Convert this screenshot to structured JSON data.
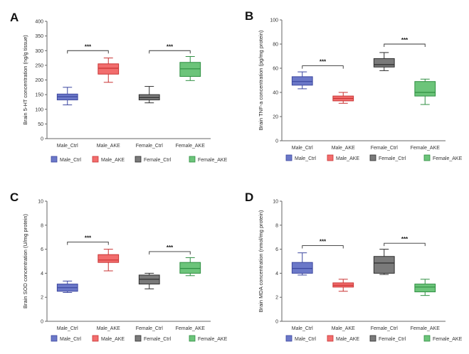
{
  "colors": {
    "blue": {
      "fill": "#6b78c8",
      "stroke": "#3c47a0"
    },
    "red": {
      "fill": "#f26d6d",
      "stroke": "#c93333"
    },
    "gray": {
      "fill": "#7a7a7a",
      "stroke": "#2e2e2e"
    },
    "green": {
      "fill": "#6cc47a",
      "stroke": "#2f8f42"
    }
  },
  "legend": [
    "Male_Ctrl",
    "Male_AKE",
    "Female_Ctrl",
    "Female_AKE"
  ],
  "chart_data": [
    {
      "type": "box",
      "panel": "A",
      "ylabel": "Brain 5-HT concentration (ng/g tissue)",
      "ylim": [
        0,
        400
      ],
      "yticks": [
        0,
        50,
        100,
        150,
        200,
        250,
        300,
        350,
        400
      ],
      "categories": [
        "Male_Ctrl",
        "Male_AKE",
        "Female_Ctrl",
        "Female_AKE"
      ],
      "boxes": [
        {
          "min": 115,
          "q1": 132,
          "median": 143,
          "q3": 152,
          "max": 175,
          "color": "blue"
        },
        {
          "min": 192,
          "q1": 220,
          "median": 240,
          "q3": 255,
          "max": 275,
          "color": "red"
        },
        {
          "min": 122,
          "q1": 132,
          "median": 140,
          "q3": 150,
          "max": 178,
          "color": "gray"
        },
        {
          "min": 198,
          "q1": 212,
          "median": 238,
          "q3": 260,
          "max": 280,
          "color": "green"
        }
      ],
      "significance": [
        {
          "from": 0,
          "to": 1,
          "y": 300,
          "label": "***"
        },
        {
          "from": 2,
          "to": 3,
          "y": 300,
          "label": "***"
        }
      ]
    },
    {
      "type": "box",
      "panel": "B",
      "ylabel": "Brain TNF-a concentration (pg/mg protein)",
      "ylim": [
        0,
        100
      ],
      "yticks": [
        0,
        20,
        40,
        60,
        80,
        100
      ],
      "categories": [
        "Male_Ctrl",
        "Male_AKE",
        "Female_Ctrl",
        "Female_AKE"
      ],
      "boxes": [
        {
          "min": 43,
          "q1": 46,
          "median": 49,
          "q3": 53,
          "max": 57,
          "color": "blue"
        },
        {
          "min": 31,
          "q1": 33,
          "median": 35,
          "q3": 37,
          "max": 40,
          "color": "red"
        },
        {
          "min": 58,
          "q1": 61,
          "median": 63,
          "q3": 68,
          "max": 73,
          "color": "gray"
        },
        {
          "min": 30,
          "q1": 37,
          "median": 40,
          "q3": 49,
          "max": 51,
          "color": "green"
        }
      ],
      "significance": [
        {
          "from": 0,
          "to": 1,
          "y": 62,
          "label": "***"
        },
        {
          "from": 2,
          "to": 3,
          "y": 80,
          "label": "***"
        }
      ]
    },
    {
      "type": "box",
      "panel": "C",
      "ylabel": "Brain SOD concentration (U/mg protein)",
      "ylim": [
        0,
        10
      ],
      "yticks": [
        0,
        2,
        4,
        6,
        8,
        10
      ],
      "categories": [
        "Male_Ctrl",
        "Male_AKE",
        "Female_Ctrl",
        "Female_AKE"
      ],
      "boxes": [
        {
          "min": 2.4,
          "q1": 2.5,
          "median": 2.8,
          "q3": 3.1,
          "max": 3.35,
          "color": "blue"
        },
        {
          "min": 4.2,
          "q1": 4.9,
          "median": 5.1,
          "q3": 5.55,
          "max": 6.0,
          "color": "red"
        },
        {
          "min": 2.7,
          "q1": 3.1,
          "median": 3.5,
          "q3": 3.85,
          "max": 4.0,
          "color": "gray"
        },
        {
          "min": 3.8,
          "q1": 4.0,
          "median": 4.4,
          "q3": 4.9,
          "max": 5.3,
          "color": "green"
        }
      ],
      "significance": [
        {
          "from": 0,
          "to": 1,
          "y": 6.6,
          "label": "***"
        },
        {
          "from": 2,
          "to": 3,
          "y": 5.8,
          "label": "***"
        }
      ]
    },
    {
      "type": "box",
      "panel": "D",
      "ylabel": "Brain MDA concentration (nmol/mg protein)",
      "ylim": [
        0,
        10
      ],
      "yticks": [
        0,
        2,
        4,
        6,
        8,
        10
      ],
      "categories": [
        "Male_Ctrl",
        "Male_AKE",
        "Female_Ctrl",
        "Female_AKE"
      ],
      "boxes": [
        {
          "min": 3.85,
          "q1": 4.0,
          "median": 4.4,
          "q3": 4.9,
          "max": 5.7,
          "color": "blue"
        },
        {
          "min": 2.5,
          "q1": 2.85,
          "median": 3.0,
          "q3": 3.2,
          "max": 3.5,
          "color": "red"
        },
        {
          "min": 3.9,
          "q1": 4.0,
          "median": 4.85,
          "q3": 5.4,
          "max": 6.0,
          "color": "gray"
        },
        {
          "min": 2.15,
          "q1": 2.45,
          "median": 2.85,
          "q3": 3.1,
          "max": 3.5,
          "color": "green"
        }
      ],
      "significance": [
        {
          "from": 0,
          "to": 1,
          "y": 6.3,
          "label": "***"
        },
        {
          "from": 2,
          "to": 3,
          "y": 6.5,
          "label": "***"
        }
      ]
    }
  ]
}
